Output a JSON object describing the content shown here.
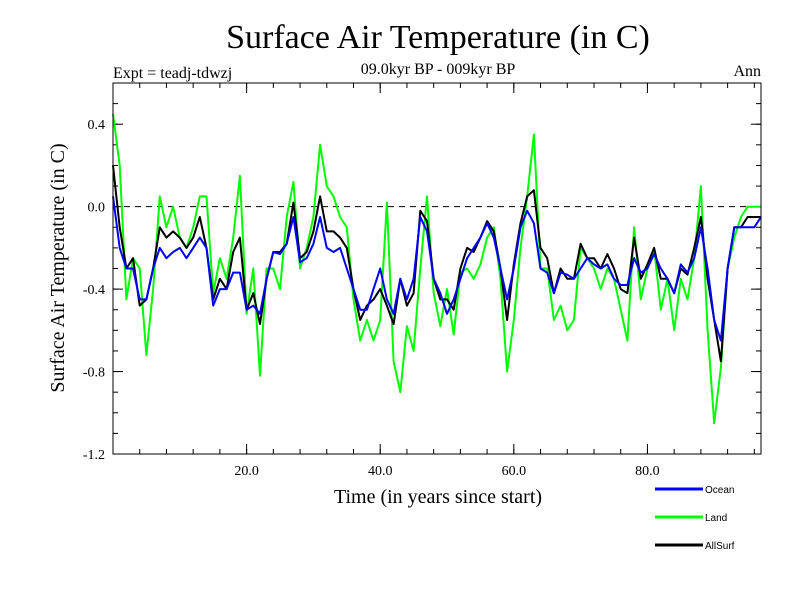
{
  "chart_data": {
    "type": "line",
    "title": "Surface Air Temperature (in C)",
    "subtitle": "09.0kyr BP - 009kyr BP",
    "experiment": "Expt = teadj-tdwzj",
    "period": "Ann",
    "xlabel": "Time (in years since start)",
    "ylabel": "Surface Air Temperature (in C)",
    "xlim": [
      0,
      97
    ],
    "ylim": [
      -1.2,
      0.6
    ],
    "xticks": [
      20,
      40,
      60,
      80
    ],
    "xtick_labels": [
      "20.0",
      "40.0",
      "60.0",
      "80.0"
    ],
    "yticks": [
      0.4,
      0.0,
      -0.4,
      -0.8,
      -1.2
    ],
    "ytick_labels": [
      "0.4",
      "0.0",
      "-0.4",
      "-0.8",
      "-1.2"
    ],
    "reference_line": 0.0,
    "x": [
      0,
      1,
      2,
      3,
      4,
      5,
      6,
      7,
      8,
      9,
      10,
      11,
      12,
      13,
      14,
      15,
      16,
      17,
      18,
      19,
      20,
      21,
      22,
      23,
      24,
      25,
      26,
      27,
      28,
      29,
      30,
      31,
      32,
      33,
      34,
      35,
      36,
      37,
      38,
      39,
      40,
      41,
      42,
      43,
      44,
      45,
      46,
      47,
      48,
      49,
      50,
      51,
      52,
      53,
      54,
      55,
      56,
      57,
      58,
      59,
      60,
      61,
      62,
      63,
      64,
      65,
      66,
      67,
      68,
      69,
      70,
      71,
      72,
      73,
      74,
      75,
      76,
      77,
      78,
      79,
      80,
      81,
      82,
      83,
      84,
      85,
      86,
      87,
      88,
      89,
      90,
      91,
      92,
      93,
      94,
      95,
      96,
      97
    ],
    "series": [
      {
        "name": "Ocean",
        "color": "#0000ff",
        "values": [
          0.05,
          -0.2,
          -0.3,
          -0.3,
          -0.45,
          -0.45,
          -0.3,
          -0.2,
          -0.25,
          -0.22,
          -0.2,
          -0.25,
          -0.2,
          -0.15,
          -0.2,
          -0.48,
          -0.4,
          -0.4,
          -0.32,
          -0.32,
          -0.5,
          -0.48,
          -0.52,
          -0.35,
          -0.22,
          -0.23,
          -0.18,
          -0.05,
          -0.27,
          -0.25,
          -0.18,
          -0.05,
          -0.2,
          -0.22,
          -0.2,
          -0.3,
          -0.4,
          -0.5,
          -0.5,
          -0.4,
          -0.3,
          -0.45,
          -0.52,
          -0.35,
          -0.45,
          -0.35,
          -0.05,
          -0.12,
          -0.35,
          -0.42,
          -0.52,
          -0.45,
          -0.35,
          -0.25,
          -0.2,
          -0.15,
          -0.08,
          -0.15,
          -0.3,
          -0.45,
          -0.3,
          -0.1,
          -0.02,
          -0.08,
          -0.3,
          -0.32,
          -0.42,
          -0.32,
          -0.33,
          -0.35,
          -0.3,
          -0.25,
          -0.28,
          -0.3,
          -0.28,
          -0.35,
          -0.38,
          -0.38,
          -0.25,
          -0.32,
          -0.3,
          -0.23,
          -0.3,
          -0.35,
          -0.42,
          -0.28,
          -0.32,
          -0.25,
          -0.1,
          -0.3,
          -0.55,
          -0.65,
          -0.3,
          -0.1,
          -0.1,
          -0.1,
          -0.1,
          -0.05
        ]
      },
      {
        "name": "Land",
        "color": "#00ff00",
        "values": [
          0.45,
          0.2,
          -0.45,
          -0.25,
          -0.3,
          -0.72,
          -0.4,
          0.05,
          -0.1,
          0.0,
          -0.15,
          -0.2,
          -0.1,
          0.05,
          0.05,
          -0.42,
          -0.25,
          -0.35,
          -0.15,
          0.15,
          -0.52,
          -0.3,
          -0.82,
          -0.3,
          -0.3,
          -0.4,
          -0.05,
          0.12,
          -0.3,
          -0.2,
          -0.05,
          0.3,
          0.1,
          0.05,
          -0.05,
          -0.1,
          -0.45,
          -0.65,
          -0.55,
          -0.65,
          -0.55,
          0.02,
          -0.75,
          -0.9,
          -0.58,
          -0.7,
          -0.3,
          0.05,
          -0.42,
          -0.58,
          -0.4,
          -0.62,
          -0.32,
          -0.3,
          -0.35,
          -0.28,
          -0.15,
          -0.1,
          -0.35,
          -0.8,
          -0.55,
          -0.2,
          0.05,
          0.35,
          -0.3,
          -0.3,
          -0.55,
          -0.48,
          -0.6,
          -0.55,
          -0.2,
          -0.25,
          -0.3,
          -0.4,
          -0.3,
          -0.35,
          -0.5,
          -0.65,
          -0.1,
          -0.45,
          -0.3,
          -0.2,
          -0.5,
          -0.35,
          -0.6,
          -0.35,
          -0.45,
          -0.25,
          0.1,
          -0.6,
          -1.05,
          -0.78,
          -0.3,
          -0.15,
          -0.05,
          0.0,
          0.0,
          0.0
        ]
      },
      {
        "name": "AllSurf",
        "color": "#000000",
        "values": [
          0.2,
          -0.1,
          -0.3,
          -0.25,
          -0.48,
          -0.45,
          -0.3,
          -0.1,
          -0.15,
          -0.12,
          -0.15,
          -0.2,
          -0.15,
          -0.05,
          -0.2,
          -0.45,
          -0.35,
          -0.4,
          -0.22,
          -0.15,
          -0.5,
          -0.42,
          -0.57,
          -0.35,
          -0.22,
          -0.22,
          -0.18,
          0.02,
          -0.25,
          -0.22,
          -0.12,
          0.05,
          -0.12,
          -0.12,
          -0.15,
          -0.2,
          -0.4,
          -0.55,
          -0.48,
          -0.45,
          -0.4,
          -0.48,
          -0.57,
          -0.35,
          -0.48,
          -0.42,
          -0.02,
          -0.07,
          -0.35,
          -0.45,
          -0.45,
          -0.5,
          -0.3,
          -0.2,
          -0.22,
          -0.15,
          -0.07,
          -0.12,
          -0.3,
          -0.55,
          -0.28,
          -0.08,
          0.05,
          0.08,
          -0.2,
          -0.25,
          -0.42,
          -0.3,
          -0.35,
          -0.35,
          -0.18,
          -0.25,
          -0.25,
          -0.3,
          -0.23,
          -0.3,
          -0.4,
          -0.42,
          -0.15,
          -0.35,
          -0.28,
          -0.2,
          -0.35,
          -0.35,
          -0.42,
          -0.3,
          -0.33,
          -0.2,
          -0.05,
          -0.35,
          -0.55,
          -0.75,
          -0.3,
          -0.1,
          -0.1,
          -0.05,
          -0.05,
          -0.05
        ]
      }
    ],
    "legend_position": "bottom-right"
  }
}
